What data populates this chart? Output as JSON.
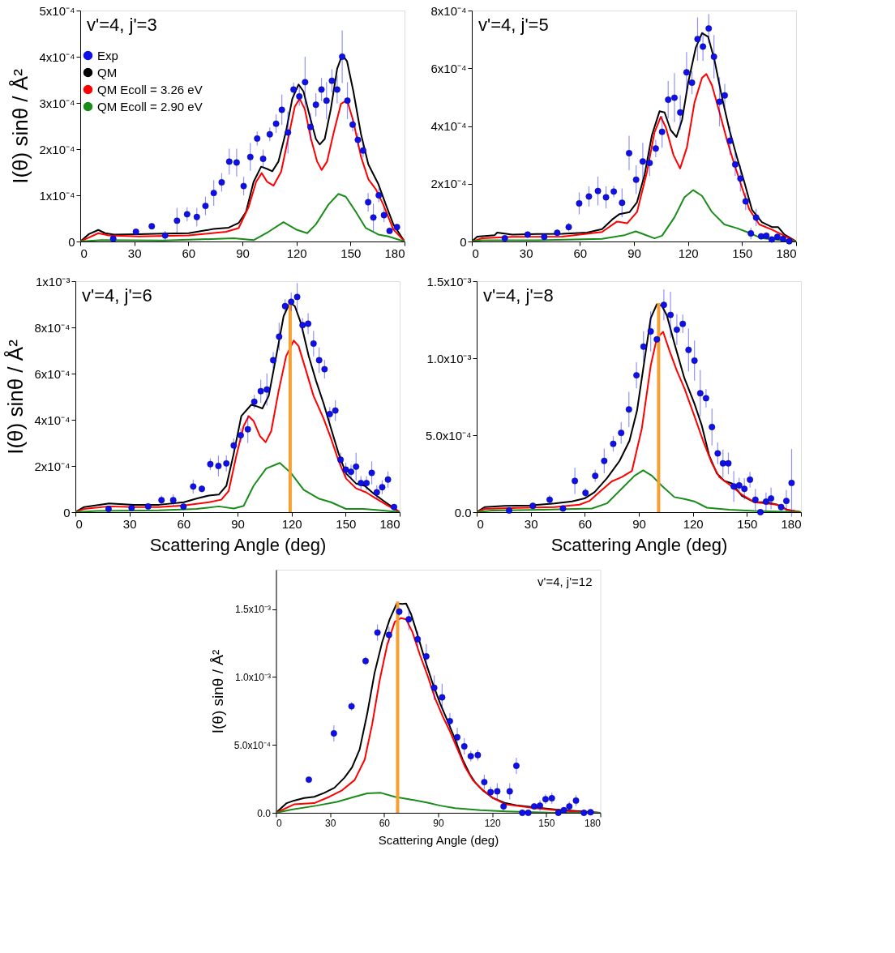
{
  "chart_data": [
    {
      "type": "line",
      "annotations": [
        "v'=4, j'=3"
      ],
      "ylabel": "I(θ) sinθ / Å²",
      "xlim": [
        0,
        180
      ],
      "ylim": [
        0,
        0.0005
      ],
      "xticks": [
        0,
        30,
        60,
        90,
        120,
        150,
        180
      ],
      "yticks": [
        0,
        {
          "value": 0.0001,
          "label": "1x10⁻⁴"
        },
        {
          "value": 0.0002,
          "label": "2x10⁻⁴"
        },
        {
          "value": 0.0003,
          "label": "3x10⁻⁴"
        },
        {
          "value": 0.0004,
          "label": "4x10⁻⁴"
        },
        {
          "value": 0.0005,
          "label": "5x10⁻⁴"
        }
      ],
      "legend": "top left",
      "series": [
        {
          "name": "Exp",
          "type": "scatter",
          "marker": "circle",
          "color": "#1010e8",
          "x": [
            18.3,
            30.9,
            39.7,
            47.1,
            53.7,
            59.3,
            64.7,
            69.5,
            74.1,
            78.5,
            82.7,
            86.8,
            90.7,
            94.4,
            98.2,
            101.5,
            105.2,
            108.7,
            111.9,
            115.3,
            118.4,
            121.6,
            124.8,
            127.8,
            130.8,
            133.9,
            136.7,
            139.7,
            142.6,
            145.4,
            148.3,
            151.2,
            154.1,
            157.0,
            159.8,
            162.7,
            165.7,
            168.6,
            171.7,
            175.8
          ],
          "values": [
            6e-06,
            2.1e-05,
            3.3e-05,
            1.3e-05,
            4.5e-05,
            5.9e-05,
            5.3e-05,
            7.7e-05,
            0.000105,
            0.000128,
            0.000173,
            0.000171,
            0.00012,
            0.000183,
            0.000223,
            0.000179,
            0.000232,
            0.000255,
            0.000285,
            0.000236,
            0.000329,
            0.000314,
            0.000345,
            0.000248,
            0.000296,
            0.000329,
            0.000305,
            0.000348,
            0.000329,
            0.0004,
            0.000305,
            0.000253,
            0.00022,
            0.000197,
            8.5e-05,
            5.2e-05,
            0.0001,
            5.7e-05,
            2.3e-05,
            3.1e-05
          ],
          "errors": [
            3e-06,
            5e-06,
            5e-06,
            1e-05,
            2.8e-05,
            1.5e-05,
            2e-05,
            2e-05,
            2.8e-05,
            2e-05,
            2.8e-05,
            3e-05,
            2e-05,
            3e-05,
            1.5e-05,
            2e-05,
            1.5e-05,
            2e-05,
            3.3e-05,
            4.5e-05,
            1.5e-05,
            2e-05,
            5.5e-05,
            3e-05,
            2.5e-05,
            2.5e-05,
            4e-05,
            2.5e-05,
            3e-05,
            5.7e-05,
            4e-05,
            1.5e-05,
            1.5e-05,
            1.5e-05,
            2e-05,
            3e-05,
            1.5e-05,
            1.5e-05,
            5e-06,
            5e-06
          ]
        },
        {
          "name": "QM",
          "type": "line",
          "color": "#000000",
          "x": [
            0,
            4.8,
            10,
            13.8,
            18.7,
            32.5,
            46.4,
            60.2,
            74,
            82.4,
            87.9,
            92,
            96.2,
            100.4,
            103.8,
            106.6,
            110,
            114.2,
            117.7,
            121.2,
            123.9,
            127.4,
            130.8,
            132.9,
            135.7,
            139.1,
            142.6,
            145.4,
            148.1,
            151.6,
            155.8,
            159.9,
            165.5,
            169.6,
            173.8,
            180
          ],
          "values": [
            0,
            1.6e-05,
            2.5e-05,
            1.8e-05,
            1.5e-05,
            1.6e-05,
            1.7e-05,
            1.8e-05,
            2.7e-05,
            3e-05,
            4e-05,
            6.4e-05,
            0.000129,
            0.000162,
            0.000157,
            0.000152,
            0.000173,
            0.000238,
            0.000309,
            0.00034,
            0.000325,
            0.000271,
            0.000222,
            0.00021,
            0.000222,
            0.000287,
            0.000374,
            0.000404,
            0.00039,
            0.000325,
            0.000233,
            0.000167,
            0.000124,
            8e-05,
            3.7e-05,
            0
          ]
        },
        {
          "name": "QM Ecoll = 3.26 eV",
          "type": "line",
          "color": "#ff0000",
          "x": [
            0,
            10,
            15.9,
            32.5,
            60.2,
            81,
            87.9,
            93.5,
            97.6,
            100.7,
            103.8,
            107.3,
            111.5,
            115.6,
            119.1,
            121.8,
            124.6,
            128.1,
            131.5,
            134,
            137,
            140.5,
            144.7,
            148.1,
            151.6,
            155.8,
            159.9,
            164.1,
            168.2,
            173.8,
            180
          ],
          "values": [
            0,
            1.8e-05,
            1.3e-05,
            1.1e-05,
            1.3e-05,
            2.1e-05,
            2.9e-05,
            7.5e-05,
            0.000129,
            0.000148,
            0.000129,
            0.000121,
            0.000151,
            0.000227,
            0.000292,
            0.000309,
            0.000287,
            0.000222,
            0.000173,
            0.000155,
            0.000173,
            0.000233,
            0.000298,
            0.000306,
            0.00026,
            0.000184,
            0.000135,
            0.000113,
            8e-05,
            2.6e-05,
            0
          ]
        },
        {
          "name": "QM Ecoll = 2.90 eV",
          "type": "line",
          "color": "#1a8c1a",
          "x": [
            0,
            11.8,
            46.4,
            85.2,
            96.2,
            104.5,
            112.8,
            119.8,
            126,
            130.8,
            137.8,
            143.3,
            147.4,
            153,
            158.5,
            165.5,
            171,
            180
          ],
          "values": [
            0,
            3e-06,
            2e-06,
            7e-06,
            3e-06,
            2.1e-05,
            4.2e-05,
            2.6e-05,
            1.8e-05,
            3.7e-05,
            8e-05,
            0.000103,
            9.7e-05,
            6.4e-05,
            2.9e-05,
            1.5e-05,
            1.1e-05,
            0
          ]
        }
      ]
    },
    {
      "type": "line",
      "annotations": [
        "v'=4, j'=5"
      ],
      "xlim": [
        0,
        180
      ],
      "ylim": [
        0,
        0.0008
      ],
      "xticks": [
        0,
        30,
        60,
        90,
        120,
        150,
        180
      ],
      "yticks": [
        0,
        {
          "value": 0.0002,
          "label": "2x10⁻⁴"
        },
        {
          "value": 0.0004,
          "label": "4x10⁻⁴"
        },
        {
          "value": 0.0006,
          "label": "6x10⁻⁴"
        },
        {
          "value": 0.0008,
          "label": "8x10⁻⁴"
        }
      ],
      "series": [
        {
          "type": "scatter",
          "marker": "circle",
          "color": "#1010e8",
          "x": [
            18.3,
            31,
            40.2,
            47.4,
            53.8,
            59.6,
            65,
            70,
            74.5,
            78.8,
            83.4,
            87.3,
            91.2,
            94.9,
            98.7,
            102.1,
            105.6,
            109,
            112.5,
            115.7,
            119.2,
            122.2,
            125.3,
            128.3,
            131.5,
            134.4,
            137.5,
            140.4,
            143.3,
            146.2,
            149.1,
            152,
            154.9,
            157.8,
            160.6,
            163.5,
            166.5,
            169.6,
            172.8,
            176.2
          ],
          "values": [
            1.1e-05,
            2.4e-05,
            1.6e-05,
            3e-05,
            5e-05,
            0.000132,
            0.000156,
            0.000175,
            0.000153,
            0.000173,
            0.000134,
            0.000306,
            0.000214,
            0.000277,
            0.000272,
            0.000322,
            0.00038,
            0.000491,
            0.000498,
            0.000447,
            0.000586,
            0.00055,
            0.000701,
            0.000675,
            0.000738,
            0.00064,
            0.000484,
            0.000506,
            0.000349,
            0.000267,
            0.000218,
            0.000139,
            2.8e-05,
            8.3e-05,
            1.8e-05,
            2e-05,
            7e-06,
            1.6e-05,
            9e-06,
            1e-06
          ],
          "errors": [
            null,
            1e-05,
            1e-05,
            1e-05,
            1.5e-05,
            3.8e-05,
            3.5e-05,
            5e-05,
            3.8e-05,
            2e-05,
            5e-05,
            6e-05,
            5e-05,
            6.5e-05,
            4.5e-05,
            3e-05,
            5.5e-05,
            6.5e-05,
            8.5e-05,
            6e-05,
            7e-05,
            4e-05,
            7.5e-05,
            5e-05,
            5e-05,
            7.5e-05,
            8.5e-05,
            4e-05,
            5e-05,
            4e-05,
            4.5e-05,
            3e-05,
            2e-05,
            3e-05,
            1e-05,
            1e-05,
            5e-06,
            1e-05,
            5e-06,
            null
          ]
        },
        {
          "type": "line",
          "color": "#000000",
          "x": [
            0,
            3,
            12.7,
            14.1,
            22.4,
            36.3,
            50.2,
            64,
            72.3,
            77.9,
            82,
            87.6,
            91.7,
            95.9,
            100,
            104.2,
            107,
            110.4,
            113.6,
            116.7,
            120.1,
            124.3,
            127.8,
            131.2,
            134.7,
            138.9,
            143,
            147.2,
            151.3,
            155.5,
            161,
            166.6,
            170,
            173.5,
            180
          ],
          "values": [
            0,
            1.7e-05,
            2.2e-05,
            3.1e-05,
            2.4e-05,
            2.6e-05,
            2.7e-05,
            3.1e-05,
            4.3e-05,
            7.6e-05,
            9.5e-05,
            0.000102,
            0.000136,
            0.000231,
            0.000369,
            0.000451,
            0.000447,
            0.000386,
            0.000362,
            0.000421,
            0.00055,
            0.000671,
            0.000722,
            0.000709,
            0.000628,
            0.000498,
            0.000386,
            0.000291,
            0.000205,
            0.00011,
            6.7e-05,
            5e-05,
            5e-05,
            2.4e-05,
            0
          ]
        },
        {
          "type": "line",
          "color": "#ff0000",
          "x": [
            0,
            5.8,
            22.4,
            50.2,
            72.3,
            80.6,
            86.2,
            91.7,
            97.2,
            101.4,
            104.9,
            107.7,
            111.9,
            115.6,
            119.4,
            123.6,
            127.8,
            130.2,
            133.3,
            137.5,
            141.6,
            145.8,
            149.9,
            154.1,
            159.6,
            166.6,
            172.1,
            180
          ],
          "values": [
            0,
            1.1e-05,
            1.6e-05,
            1.7e-05,
            3.3e-05,
            6.9e-05,
            6.3e-05,
            0.000102,
            0.00024,
            0.000378,
            0.000432,
            0.000395,
            0.0003,
            0.000253,
            0.000326,
            0.000481,
            0.000567,
            0.00058,
            0.000541,
            0.000447,
            0.000352,
            0.000266,
            0.000188,
            0.00011,
            5.9e-05,
            4.1e-05,
            2.4e-05,
            0
          ]
        },
        {
          "type": "line",
          "color": "#1a8c1a",
          "x": [
            0,
            5.8,
            36.3,
            72.3,
            84.8,
            91,
            95.9,
            101.4,
            105.6,
            112.5,
            118,
            122.9,
            127.8,
            133.3,
            140.2,
            147.2,
            152.7,
            161,
            180
          ],
          "values": [
            0,
            4e-06,
            4e-06,
            9e-06,
            2.2e-05,
            3.5e-05,
            2.4e-05,
            1.1e-05,
            2e-05,
            8.4e-05,
            0.000153,
            0.000178,
            0.000158,
            0.000102,
            5.9e-05,
            4.6e-05,
            3.3e-05,
            1.1e-05,
            0
          ]
        }
      ]
    },
    {
      "type": "line",
      "annotations": [
        "v'=4, j'=6"
      ],
      "xlabel": "Scattering Angle (deg)",
      "ylabel": "I(θ) sinθ / Å²",
      "xlim": [
        0,
        180
      ],
      "ylim": [
        0,
        0.001
      ],
      "xticks": [
        0,
        30,
        60,
        90,
        120,
        150,
        180
      ],
      "yticks": [
        0,
        {
          "value": 0.0002,
          "label": "2x10⁻⁴"
        },
        {
          "value": 0.0004,
          "label": "4x10⁻⁴"
        },
        {
          "value": 0.0006,
          "label": "6x10⁻⁴"
        },
        {
          "value": 0.0008,
          "label": "8x10⁻⁴"
        },
        {
          "value": 0.001,
          "label": "1x10⁻³"
        }
      ],
      "series": [
        {
          "type": "scatter",
          "marker": "circle",
          "color": "#1010e8",
          "x": [
            18.4,
            31.2,
            40.4,
            47.8,
            54.3,
            60,
            65.4,
            70.2,
            74.9,
            79.4,
            83.8,
            87.9,
            91.8,
            95.7,
            99.3,
            102.9,
            106.3,
            109.8,
            113.1,
            116.4,
            119.8,
            123.1,
            126.1,
            129.2,
            132.2,
            135.3,
            138.3,
            141.2,
            144.3,
            147.2,
            150.1,
            153,
            155.8,
            158.5,
            161.6,
            164.5,
            167.3,
            170.3,
            173.5,
            176.9
          ],
          "values": [
            1.4e-05,
            1.8e-05,
            2.5e-05,
            5.2e-05,
            5.2e-05,
            2.4e-05,
            0.000111,
            0.000101,
            0.000208,
            0.0002,
            0.000211,
            0.000289,
            0.000333,
            0.000359,
            0.000478,
            0.000524,
            0.000531,
            0.000658,
            0.00076,
            0.000892,
            0.000911,
            0.000932,
            0.00081,
            0.000816,
            0.00073,
            0.000658,
            0.000619,
            0.000425,
            0.00044,
            0.000227,
            0.000184,
            0.000175,
            0.000197,
            0.000126,
            0.000126,
            0.00017,
            8.6e-05,
            0.000108,
            0.000141,
            2.2e-05
          ],
          "errors": [
            1e-05,
            1e-05,
            1e-05,
            2e-05,
            2.5e-05,
            1e-05,
            3e-05,
            1.5e-05,
            2.5e-05,
            4.5e-05,
            3.5e-05,
            3e-05,
            3e-05,
            6e-05,
            3e-05,
            5e-05,
            7e-05,
            3.5e-05,
            6e-05,
            3e-05,
            4e-05,
            6e-05,
            3e-05,
            4.5e-05,
            5.5e-05,
            5.5e-05,
            4e-05,
            3e-05,
            4.5e-05,
            3e-05,
            3e-05,
            3e-05,
            6e-05,
            3e-05,
            3e-05,
            5e-05,
            3e-05,
            3e-05,
            3.5e-05,
            null
          ]
        },
        {
          "type": "line",
          "color": "#000000",
          "x": [
            0,
            4.8,
            18.7,
            32.5,
            46.4,
            60.2,
            67.2,
            74.1,
            79.6,
            83.8,
            87.9,
            92.1,
            97.6,
            100.4,
            103.8,
            107.3,
            111.5,
            115.6,
            119.1,
            121.8,
            125.3,
            129.5,
            133.6,
            137.8,
            141.9,
            146.1,
            150.2,
            155.8,
            160.6,
            165.5,
            171,
            180
          ],
          "values": [
            0,
            2.2e-05,
            3.8e-05,
            3.2e-05,
            3.2e-05,
            4.3e-05,
            5.9e-05,
            7.2e-05,
            7.6e-05,
            0.000114,
            0.000254,
            0.000416,
            0.000465,
            0.000459,
            0.000449,
            0.000503,
            0.000676,
            0.000849,
            0.000908,
            0.000892,
            0.000816,
            0.000676,
            0.000568,
            0.00047,
            0.000362,
            0.000254,
            0.000168,
            0.000124,
            0.000114,
            8.1e-05,
            4.9e-05,
            0
          ]
        },
        {
          "type": "line",
          "color": "#ff0000",
          "x": [
            0,
            4.8,
            18.7,
            32.5,
            46.4,
            60.2,
            74.1,
            81,
            85.1,
            89.3,
            93.4,
            96.2,
            98.9,
            102.4,
            105.6,
            108.7,
            112.8,
            117,
            121.2,
            123.9,
            128.1,
            132.2,
            137.8,
            141.9,
            146.1,
            150.2,
            155.8,
            161.3,
            166.8,
            173.8,
            180
          ],
          "values": [
            0,
            1.4e-05,
            2.5e-05,
            2.2e-05,
            2.2e-05,
            2.9e-05,
            4.3e-05,
            5.4e-05,
            9.2e-05,
            0.000243,
            0.000373,
            0.000416,
            0.000395,
            0.00033,
            0.000303,
            0.000351,
            0.000524,
            0.000676,
            0.000743,
            0.000719,
            0.000611,
            0.000503,
            0.000405,
            0.000319,
            0.000222,
            0.000146,
            0.000103,
            8.6e-05,
            5.9e-05,
            2.7e-05,
            0
          ]
        },
        {
          "type": "line",
          "color": "#1a8c1a",
          "x": [
            0,
            11.8,
            46.4,
            67.2,
            79.6,
            87.9,
            93.4,
            98.9,
            105.9,
            113.5,
            119.8,
            126.7,
            135,
            141.9,
            150.2,
            159.9,
            169.6,
            180
          ],
          "values": [
            0,
            5e-06,
            8e-06,
            1.4e-05,
            2.5e-05,
            1.6e-05,
            2.7e-05,
            0.000114,
            0.000189,
            0.000213,
            0.000168,
            9.7e-05,
            5.9e-05,
            4.3e-05,
            1.4e-05,
            1.4e-05,
            8e-06,
            0
          ]
        },
        {
          "type": "line",
          "color": "#f5a030",
          "x": [
            119.2,
            119.2
          ],
          "values": [
            0,
            0.00091
          ]
        }
      ]
    },
    {
      "type": "line",
      "annotations": [
        "v'=4, j'=8"
      ],
      "xlabel": "Scattering Angle (deg)",
      "xlim": [
        0,
        180
      ],
      "ylim": [
        0,
        0.0015
      ],
      "xticks": [
        0,
        30,
        60,
        90,
        120,
        150,
        180
      ],
      "yticks": [
        {
          "value": 0,
          "label": "0.0"
        },
        {
          "value": 0.0005,
          "label": "5.0x10⁻⁴"
        },
        {
          "value": 0.001,
          "label": "1.0x10⁻³"
        },
        {
          "value": 0.0015,
          "label": "1.5x10⁻³"
        }
      ],
      "series": [
        {
          "type": "scatter",
          "marker": "circle",
          "color": "#1010e8",
          "x": [
            18,
            31.2,
            40.5,
            47.9,
            54.5,
            60.4,
            65.8,
            70.8,
            75.8,
            80.2,
            84.5,
            88.7,
            92.6,
            96.6,
            100,
            103.9,
            107.6,
            111.1,
            114.4,
            117.6,
            120.9,
            124.1,
            127.3,
            130.6,
            133.8,
            136.7,
            139.7,
            142.7,
            145.7,
            148.6,
            151.7,
            154.7,
            157.5,
            160.6,
            163.4,
            169,
            171.9,
            174.8
          ],
          "values": [
            1.1e-05,
            4.1e-05,
            8.1e-05,
            2.4e-05,
            0.000203,
            0.000125,
            0.000236,
            0.000333,
            0.000444,
            0.000515,
            0.000667,
            0.000889,
            0.001075,
            0.001174,
            0.001122,
            0.001346,
            0.001281,
            0.001185,
            0.001223,
            0.001054,
            0.000984,
            0.000772,
            0.00074,
            0.000553,
            0.000382,
            0.000317,
            0.000317,
            0.000167,
            0.000174,
            0.000151,
            0.000211,
            8.1e-05,
            0,
            6.8e-05,
            8.9e-05,
            3.3e-05,
            7.3e-05,
            0.00019
          ],
          "errors": [
            1e-05,
            2e-05,
            3e-05,
            null,
            8.5e-05,
            3e-05,
            4e-05,
            8e-05,
            5e-05,
            7e-05,
            0.000115,
            8.5e-05,
            0.0001,
            0.00013,
            null,
            0.0001,
            0.00015,
            0.0001,
            6e-05,
            0.00014,
            0.00013,
            0.00015,
            6e-05,
            0.00012,
            7e-05,
            9e-05,
            7e-05,
            0.0001,
            5e-05,
            7e-05,
            5e-05,
            7e-05,
            null,
            6e-05,
            7e-05,
            null,
            7e-05,
            0.00022
          ]
        },
        {
          "type": "line",
          "color": "#000000",
          "x": [
            0,
            4.4,
            15.5,
            29.4,
            43.2,
            52.9,
            59.9,
            65.4,
            72.3,
            79.3,
            84.8,
            89,
            93.1,
            96.6,
            100,
            102.8,
            105.6,
            109.7,
            115.3,
            120.8,
            125,
            129.1,
            133.3,
            137.5,
            141.6,
            147.2,
            154.1,
            161,
            166.6,
            172.1,
            180
          ],
          "values": [
            0,
            3.3e-05,
            4.1e-05,
            4.4e-05,
            5.7e-05,
            7e-05,
            8.9e-05,
            0.00013,
            0.00022,
            0.000333,
            0.000463,
            0.000659,
            0.000984,
            0.00126,
            0.00135,
            0.001341,
            0.001276,
            0.001098,
            0.00087,
            0.000707,
            0.000561,
            0.000366,
            0.000252,
            0.000203,
            0.000187,
            0.000106,
            6.5e-05,
            6.5e-05,
            4.9e-05,
            1.6e-05,
            0
          ]
        },
        {
          "type": "line",
          "color": "#ff0000",
          "x": [
            0,
            4.4,
            22.4,
            43.2,
            57.1,
            62.6,
            68.1,
            75,
            80.6,
            86.2,
            91.7,
            96.6,
            100,
            103.5,
            107,
            111.1,
            115.3,
            120.8,
            125.7,
            130.6,
            134.7,
            140.3,
            147.2,
            154.1,
            161,
            166.6,
            172.1,
            180
          ],
          "values": [
            0,
            2.1e-05,
            2.8e-05,
            3.3e-05,
            4.9e-05,
            7.3e-05,
            0.00013,
            0.0002,
            0.000228,
            0.000268,
            0.000545,
            0.000951,
            0.00113,
            0.001171,
            0.001049,
            0.000919,
            0.000805,
            0.000626,
            0.000463,
            0.000317,
            0.000228,
            0.000179,
            0.000114,
            6.5e-05,
            5.7e-05,
            4.9e-05,
            1.6e-05,
            0
          ]
        },
        {
          "type": "line",
          "color": "#1a8c1a",
          "x": [
            0,
            8.6,
            36.3,
            64,
            72.3,
            80.6,
            87.6,
            92.4,
            97.3,
            102.8,
            109.7,
            115.3,
            120.8,
            127.8,
            140.3,
            154.1,
            180
          ],
          "values": [
            0,
            1.1e-05,
            1.6e-05,
            2.4e-05,
            5.7e-05,
            0.000154,
            0.000236,
            0.000272,
            0.000236,
            0.000171,
            9.8e-05,
            8.6e-05,
            7e-05,
            2.9e-05,
            1.6e-05,
            8e-06,
            0
          ]
        },
        {
          "type": "line",
          "color": "#f5a030",
          "x": [
            101,
            101
          ],
          "values": [
            0,
            0.001358
          ]
        }
      ]
    },
    {
      "type": "line",
      "annotations": [
        "v'=4, j'=12"
      ],
      "xlabel": "Scattering Angle (deg)",
      "ylabel": "I(θ) sinθ / Å²",
      "xlim": [
        0,
        180
      ],
      "ylim": [
        0,
        0.00179
      ],
      "xticks": [
        0,
        30,
        60,
        90,
        120,
        150,
        180
      ],
      "yticks": [
        {
          "value": 0,
          "label": "0.0"
        },
        {
          "value": 0.0005,
          "label": "5.0x10⁻⁴"
        },
        {
          "value": 0.001,
          "label": "1.0x10⁻³"
        },
        {
          "value": 0.0015,
          "label": "1.5x10⁻³"
        }
      ],
      "series": [
        {
          "type": "scatter",
          "marker": "circle",
          "color": "#1010e8",
          "x": [
            18.2,
            32.1,
            41.9,
            49.7,
            56.3,
            62.7,
            68.4,
            73.7,
            78.6,
            83.4,
            87.8,
            92.2,
            96.5,
            100.6,
            104.5,
            108.1,
            112,
            115.6,
            119.1,
            122.8,
            126.3,
            129.7,
            133.4,
            136.7,
            140,
            143.3,
            146.5,
            149.6,
            153.1,
            156.7,
            159.8,
            162.8,
            166.5,
            170.9,
            174.6
          ],
          "values": [
            0.000244,
            0.000585,
            0.000784,
            0.001118,
            0.001327,
            0.00131,
            0.001481,
            0.001425,
            0.001278,
            0.001152,
            0.000921,
            0.00085,
            0.000675,
            0.000556,
            0.000489,
            0.000417,
            0.000425,
            0.000226,
            0.000152,
            0.000158,
            4.7e-05,
            0.000158,
            0.000346,
            0,
            0,
            4.7e-05,
            5.3e-05,
            0.0001,
            0.000107,
            0,
            1.9e-05,
            4.7e-05,
            9e-05,
            0,
            4e-06
          ],
          "errors": [
            1e-05,
            6e-05,
            3e-05,
            3e-05,
            6e-05,
            6e-05,
            3e-05,
            8e-05,
            6e-05,
            9e-05,
            9e-05,
            0.0001,
            6e-05,
            7e-05,
            6e-05,
            4e-05,
            4e-05,
            5.5e-05,
            4e-05,
            6e-05,
            3e-05,
            6e-05,
            6e-05,
            null,
            null,
            null,
            4e-05,
            3.5e-05,
            4e-05,
            null,
            1.5e-05,
            3.5e-05,
            4e-05,
            null,
            null
          ]
        },
        {
          "type": "line",
          "color": "#000000",
          "x": [
            0,
            5.9,
            10,
            15.6,
            21.2,
            26.8,
            32.4,
            38,
            42.2,
            46.4,
            50.6,
            54.7,
            58.9,
            63.1,
            67,
            70.1,
            72.2,
            75,
            78.5,
            82.7,
            86.9,
            91.1,
            95.3,
            99.4,
            103.6,
            107.8,
            110.6,
            114.8,
            120.4,
            127.4,
            134.4,
            141.3,
            155.3,
            169.3,
            180
          ],
          "values": [
            0,
            7.1e-05,
            9e-05,
            0.000109,
            0.000118,
            0.000147,
            0.000184,
            0.000259,
            0.000335,
            0.000466,
            0.000729,
            0.00103,
            0.001256,
            0.001425,
            0.001541,
            0.001538,
            0.001541,
            0.001462,
            0.001312,
            0.001124,
            0.000955,
            0.000805,
            0.000673,
            0.000541,
            0.000391,
            0.000278,
            0.000222,
            0.000165,
            0.000109,
            7.1e-05,
            5.3e-05,
            4.3e-05,
            2.4e-05,
            1.1e-05,
            0
          ]
        },
        {
          "type": "line",
          "color": "#ff0000",
          "x": [
            0,
            10,
            21.2,
            29.6,
            36.6,
            43.6,
            49.2,
            53.4,
            57.5,
            61.7,
            65.9,
            69.4,
            72.2,
            75.7,
            79.9,
            84.1,
            88.3,
            92.5,
            96.6,
            100.8,
            105,
            109.2,
            113.4,
            120.4,
            127.4,
            141.3,
            155.3,
            169.3,
            180
          ],
          "values": [
            0,
            6.2e-05,
            7.1e-05,
            0.000118,
            0.000165,
            0.000241,
            0.000391,
            0.000654,
            0.000974,
            0.001237,
            0.001406,
            0.001434,
            0.001425,
            0.001331,
            0.001162,
            0.001011,
            0.000842,
            0.000711,
            0.000598,
            0.000466,
            0.000335,
            0.000241,
            0.000184,
            0.000109,
            6.2e-05,
            3.8e-05,
            1.9e-05,
            6e-06,
            0
          ]
        },
        {
          "type": "line",
          "color": "#1a8c1a",
          "x": [
            0,
            8.7,
            22.6,
            33.8,
            43.6,
            50.6,
            58.2,
            65.9,
            74.3,
            84.1,
            91.1,
            99.4,
            113.4,
            127.4,
            155.3,
            180
          ],
          "values": [
            0,
            2.4e-05,
            5.3e-05,
            8.1e-05,
            0.000118,
            0.000143,
            0.000147,
            0.000118,
            9.9e-05,
            7.5e-05,
            5.3e-05,
            3.4e-05,
            1.9e-05,
            1.1e-05,
            0,
            0
          ]
        },
        {
          "type": "line",
          "color": "#f5a030",
          "x": [
            67.5,
            67.5
          ],
          "values": [
            0,
            0.001556
          ]
        }
      ]
    }
  ]
}
